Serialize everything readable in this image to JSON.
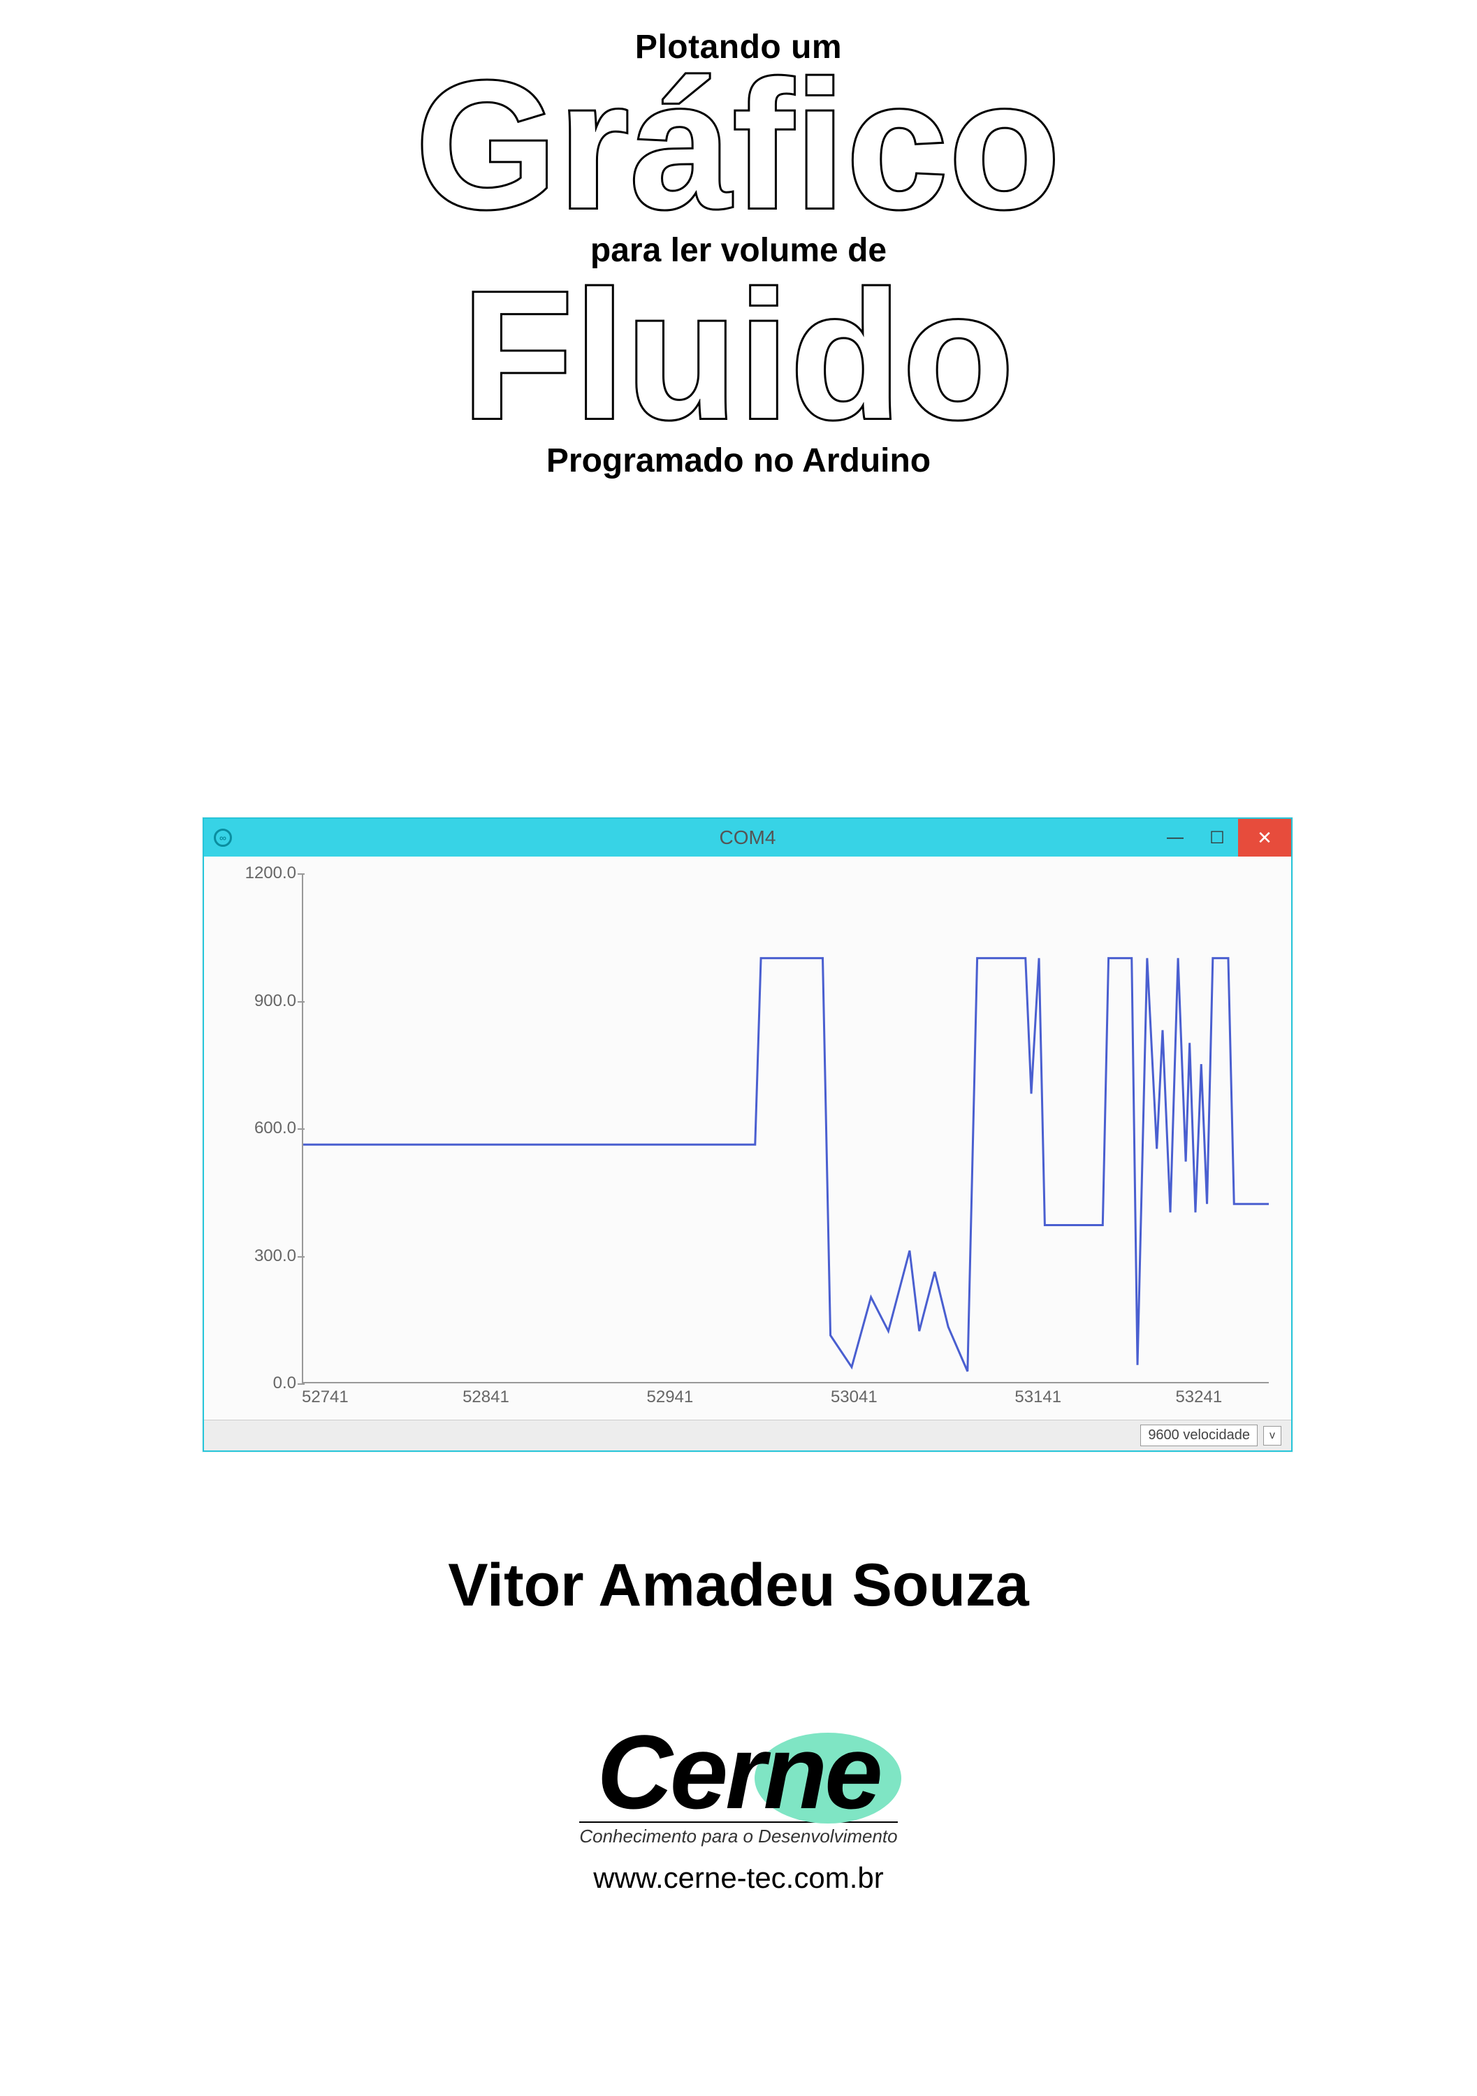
{
  "title": {
    "line_a": "Plotando um",
    "word_b": "Gráfico",
    "line_c": "para ler volume de",
    "word_d": "Fluido",
    "line_e": "Programado no Arduino"
  },
  "window": {
    "title": "COM4",
    "icon_glyph": "∞",
    "minimize_glyph": "—",
    "maximize_glyph": "☐",
    "close_glyph": "✕",
    "titlebar_bg": "#37d3e6",
    "close_bg": "#e74c3c"
  },
  "chart": {
    "type": "line",
    "line_color": "#4a5fd0",
    "axis_color": "#999999",
    "bg_color": "#fbfbfb",
    "xlim": [
      52741,
      53241
    ],
    "ylim": [
      0,
      1200
    ],
    "y_ticks": [
      "0.0",
      "300.0",
      "600.0",
      "900.0",
      "1200.0"
    ],
    "x_ticks": [
      "52741",
      "52841",
      "52941",
      "53041",
      "53141",
      "53241"
    ],
    "series": [
      [
        52741,
        560
      ],
      [
        52975,
        560
      ],
      [
        52978,
        1000
      ],
      [
        53010,
        1000
      ],
      [
        53014,
        110
      ],
      [
        53025,
        35
      ],
      [
        53035,
        200
      ],
      [
        53044,
        120
      ],
      [
        53055,
        310
      ],
      [
        53060,
        120
      ],
      [
        53068,
        260
      ],
      [
        53075,
        130
      ],
      [
        53085,
        25
      ],
      [
        53090,
        1000
      ],
      [
        53115,
        1000
      ],
      [
        53118,
        680
      ],
      [
        53122,
        1000
      ],
      [
        53125,
        370
      ],
      [
        53155,
        370
      ],
      [
        53158,
        1000
      ],
      [
        53170,
        1000
      ],
      [
        53173,
        40
      ],
      [
        53178,
        1000
      ],
      [
        53183,
        550
      ],
      [
        53186,
        830
      ],
      [
        53190,
        400
      ],
      [
        53194,
        1000
      ],
      [
        53198,
        520
      ],
      [
        53200,
        800
      ],
      [
        53203,
        400
      ],
      [
        53206,
        750
      ],
      [
        53209,
        420
      ],
      [
        53212,
        1000
      ],
      [
        53220,
        1000
      ],
      [
        53223,
        420
      ],
      [
        53241,
        420
      ]
    ]
  },
  "statusbar": {
    "baud_label": "9600 velocidade",
    "chevron": "v"
  },
  "author": "Vitor Amadeu Souza",
  "logo": {
    "name": "Cerne",
    "tagline": "Conhecimento para o Desenvolvimento",
    "url": "www.cerne-tec.com.br",
    "blob_color": "#7fe5c4"
  }
}
